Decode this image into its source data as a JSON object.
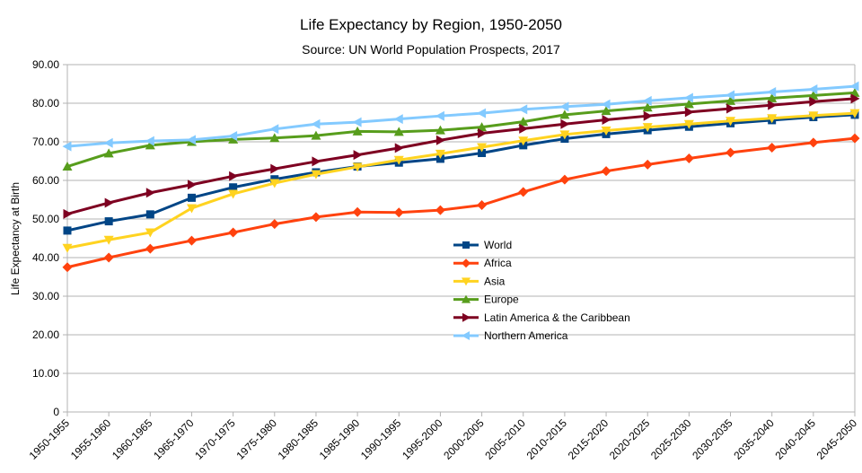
{
  "chart_data": {
    "type": "line",
    "title": "Life Expectancy by Region, 1950-2050",
    "subtitle": "Source: UN World Population Prospects, 2017",
    "ylabel": "Life Expectancy at Birth",
    "xlabel": "",
    "ylim": [
      0,
      90
    ],
    "yticks": [
      "0",
      "10.00",
      "20.00",
      "30.00",
      "40.00",
      "50.00",
      "60.00",
      "70.00",
      "80.00",
      "90.00"
    ],
    "grid": true,
    "legend_position": "center",
    "categories": [
      "1950-1955",
      "1955-1960",
      "1960-1965",
      "1965-1970",
      "1970-1975",
      "1975-1980",
      "1980-1985",
      "1985-1990",
      "1990-1995",
      "1995-2000",
      "2000-2005",
      "2005-2010",
      "2010-2015",
      "2015-2020",
      "2020-2025",
      "2025-2030",
      "2030-2035",
      "2035-2040",
      "2040-2045",
      "2045-2050"
    ],
    "series": [
      {
        "name": "World",
        "color": "#004586",
        "marker": "square",
        "values": [
          47.0,
          49.4,
          51.2,
          55.5,
          58.2,
          60.3,
          62.1,
          63.6,
          64.6,
          65.6,
          67.1,
          69.1,
          70.8,
          72.0,
          73.0,
          73.9,
          74.8,
          75.6,
          76.4,
          77.0
        ]
      },
      {
        "name": "Africa",
        "color": "#ff420e",
        "marker": "diamond",
        "values": [
          37.5,
          40.0,
          42.3,
          44.4,
          46.5,
          48.7,
          50.5,
          51.8,
          51.7,
          52.3,
          53.6,
          57.0,
          60.2,
          62.4,
          64.1,
          65.7,
          67.2,
          68.5,
          69.8,
          70.9
        ]
      },
      {
        "name": "Asia",
        "color": "#ffd320",
        "marker": "triangle-down",
        "values": [
          42.5,
          44.6,
          46.5,
          52.8,
          56.5,
          59.3,
          61.6,
          63.5,
          65.3,
          66.9,
          68.6,
          70.3,
          71.9,
          72.9,
          73.8,
          74.6,
          75.4,
          76.1,
          76.8,
          77.4
        ]
      },
      {
        "name": "Europe",
        "color": "#579d1c",
        "marker": "triangle-up",
        "values": [
          63.6,
          67.0,
          69.1,
          70.0,
          70.6,
          71.0,
          71.6,
          72.7,
          72.6,
          73.0,
          73.8,
          75.2,
          77.0,
          78.0,
          78.9,
          79.8,
          80.6,
          81.3,
          82.0,
          82.7
        ]
      },
      {
        "name": "Latin America & the Caribbean",
        "color": "#7e0021",
        "marker": "triangle-right",
        "values": [
          51.3,
          54.2,
          56.8,
          58.9,
          61.1,
          63.0,
          64.9,
          66.6,
          68.4,
          70.4,
          72.2,
          73.4,
          74.6,
          75.7,
          76.7,
          77.7,
          78.6,
          79.5,
          80.4,
          81.2
        ]
      },
      {
        "name": "Northern America",
        "color": "#83caff",
        "marker": "triangle-left",
        "values": [
          68.8,
          69.7,
          70.2,
          70.5,
          71.5,
          73.3,
          74.6,
          75.1,
          75.9,
          76.7,
          77.4,
          78.4,
          79.1,
          79.7,
          80.6,
          81.4,
          82.1,
          82.9,
          83.6,
          84.4
        ]
      }
    ]
  }
}
